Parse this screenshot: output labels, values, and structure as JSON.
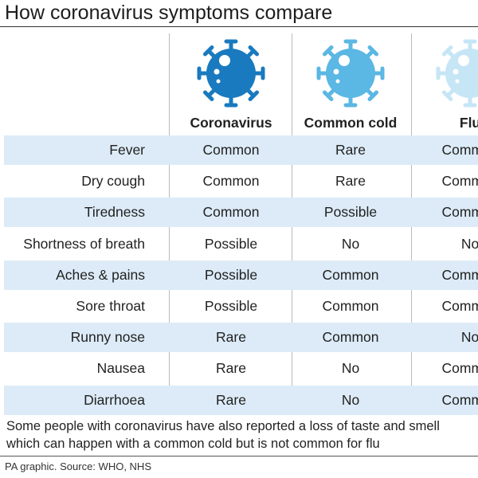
{
  "title": "How coronavirus symptoms compare",
  "table": {
    "columns": [
      "Coronavirus",
      "Common cold",
      "Flu"
    ],
    "rows": [
      [
        "Fever",
        "Common",
        "Rare",
        "Common"
      ],
      [
        "Dry cough",
        "Common",
        "Rare",
        "Common"
      ],
      [
        "Tiredness",
        "Common",
        "Possible",
        "Common"
      ],
      [
        "Shortness of breath",
        "Possible",
        "No",
        "No"
      ],
      [
        "Aches & pains",
        "Possible",
        "Common",
        "Common"
      ],
      [
        "Sore throat",
        "Possible",
        "Common",
        "Common"
      ],
      [
        "Runny nose",
        "Rare",
        "Common",
        "No"
      ],
      [
        "Nausea",
        "Rare",
        "No",
        "Common"
      ],
      [
        "Diarrhoea",
        "Rare",
        "No",
        "Common"
      ]
    ]
  },
  "footnote": [
    "Some people with coronavirus have also reported a loss of taste and smell",
    "which can happen with a common cold but is not common for flu"
  ],
  "source": "PA graphic. Source:  WHO, NHS"
}
